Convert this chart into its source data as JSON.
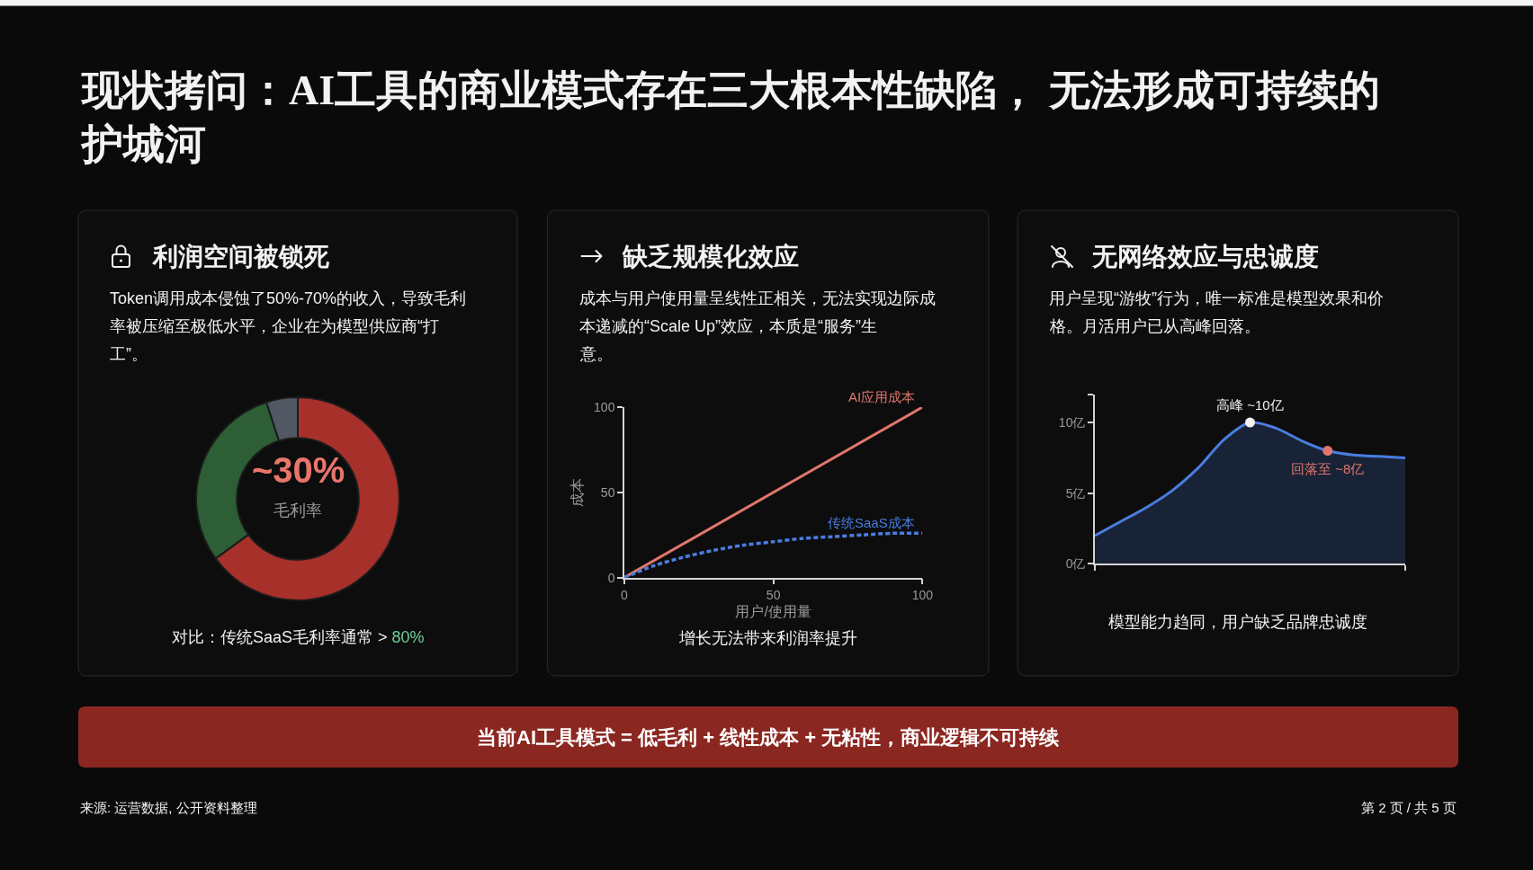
{
  "chart_data": [
    {
      "type": "other",
      "title": "现状拷问：AI工具的商业模式存在三大根本性缺陷， 无法形成可持续的护城河",
      "annotations": [
        "当前AI工具模式 = 低毛利 + 线性成本 + 无粘性，商业逻辑不可持续",
        "来源: 运营数据, 公开资料整理",
        "第 2 页 / 共 5 页"
      ]
    },
    {
      "type": "donut",
      "title": "利润空间被锁死",
      "subtitle": "Token调用成本侵蚀了50%-70%的收入，导致毛利率被压缩至极低水平，企业在为模型供应商“打工”。",
      "categories": [
        null,
        null,
        null
      ],
      "values": [
        65,
        30,
        5
      ],
      "colors": [
        "#a8302a",
        "#2d5e36",
        "#515763"
      ],
      "annotations": [
        "~30%",
        "毛利率",
        "对比：传统SaaS毛利率通常 > 80%"
      ]
    },
    {
      "type": "line",
      "title": "缺乏规模化效应",
      "subtitle": "成本与用户使用量呈线性正相关，无法实现边际成本递减的“Scale Up”效应，本质是“服务”生意。",
      "xlabel": "用户/使用量",
      "ylabel": "成本",
      "series": [
        {
          "name": "AI应用成本",
          "color": "#e0766c",
          "x": [
            0,
            100
          ],
          "values": [
            0,
            100
          ]
        },
        {
          "name": "传统SaaS成本",
          "color": "#4a7de0",
          "line_style": "dotted",
          "x": [
            0,
            10,
            20,
            30,
            40,
            50,
            60,
            70,
            80,
            90,
            100
          ],
          "values": [
            0,
            7,
            12,
            16,
            19,
            21,
            23,
            24,
            25,
            26,
            26
          ]
        }
      ],
      "xlim": [
        0,
        100
      ],
      "ylim": [
        0,
        100
      ],
      "xticks": [
        0,
        50,
        100
      ],
      "yticks": [
        0,
        50,
        100
      ],
      "annotations": [
        "增长无法带来利润率提升"
      ]
    },
    {
      "type": "area",
      "title": "无网络效应与忠诚度",
      "subtitle": "用户呈现“游牧”行为，唯一标准是模型效果和价格。月活用户已从高峰回落。",
      "categories": [
        null,
        null,
        null,
        null,
        null,
        null,
        null,
        null,
        null,
        null,
        null,
        null,
        null
      ],
      "series": [
        {
          "color": "#4a7de0",
          "values": [
            2.0,
            3.0,
            4.0,
            5.2,
            6.8,
            8.8,
            10.0,
            9.6,
            8.7,
            8.0,
            7.7,
            7.6,
            7.5
          ]
        },
        {
          "type": "scatter",
          "values": [
            null,
            null,
            null,
            null,
            null,
            null,
            10.0,
            null,
            null,
            8.0,
            null,
            null,
            null
          ],
          "colors": [
            null,
            null,
            null,
            null,
            null,
            null,
            "#f2f2f2",
            null,
            null,
            "#e0766c",
            null,
            null,
            null
          ],
          "value_labels": [
            null,
            null,
            null,
            null,
            null,
            null,
            "高峰 ~10亿",
            null,
            null,
            "回落至 ~8亿",
            null,
            null,
            null
          ]
        }
      ],
      "ylim": [
        0,
        12
      ],
      "yticks": [
        {
          "value": 0,
          "label": "0亿"
        },
        {
          "value": 5,
          "label": "5亿"
        },
        {
          "value": 10,
          "label": "10亿"
        },
        {
          "value": 12,
          "label": null
        }
      ],
      "tick_labels": "y",
      "annotations": [
        "模型能力趋同，用户缺乏品牌忠诚度"
      ]
    }
  ]
}
